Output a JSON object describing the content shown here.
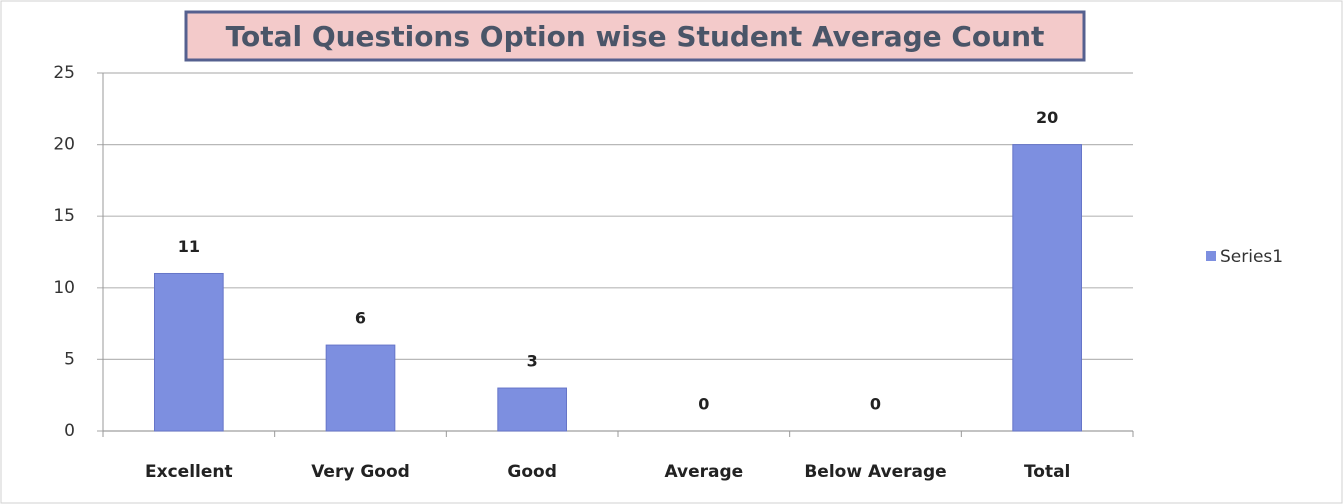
{
  "chart_data": {
    "type": "bar",
    "title": "Total Questions Option wise Student Average Count",
    "categories": [
      "Excellent",
      "Very Good",
      "Good",
      "Average",
      "Below Average",
      "Total"
    ],
    "series": [
      {
        "name": "Series1",
        "color": "#7d8fe0",
        "values": [
          11,
          6,
          3,
          0,
          0,
          20
        ]
      }
    ],
    "ylim": [
      0,
      25
    ],
    "yticks": [
      0,
      5,
      10,
      15,
      20,
      25
    ],
    "grid": true,
    "legend": "right"
  }
}
